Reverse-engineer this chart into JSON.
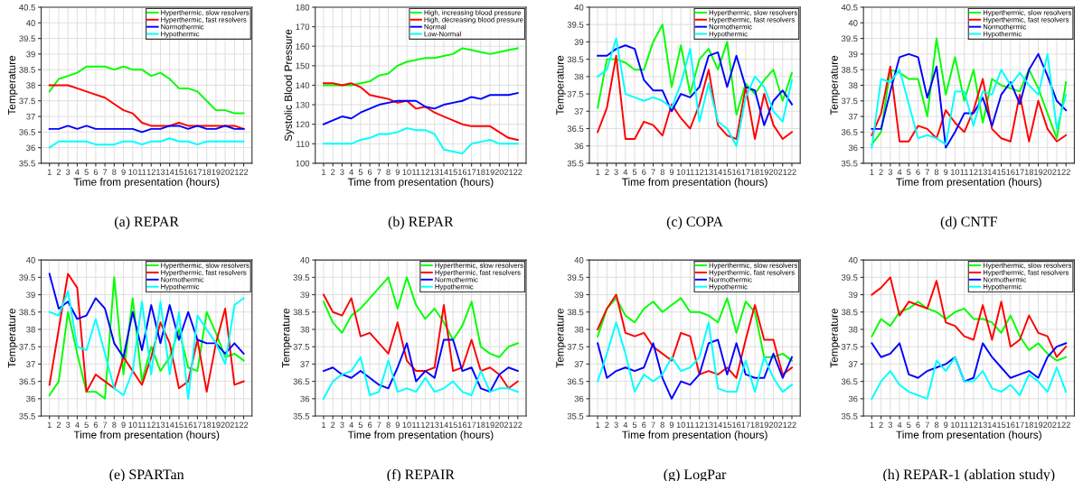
{
  "chart_data": [
    {
      "type": "line",
      "title": "(a) REPAR",
      "xlabel": "Time from presentation (hours)",
      "ylabel": "Temperature",
      "categories": [
        "1",
        "2",
        "3",
        "4",
        "5",
        "6",
        "7",
        "8",
        "9",
        "10",
        "11",
        "12",
        "13",
        "14",
        "15",
        "16",
        "17",
        "18",
        "19",
        "20",
        "21",
        "22"
      ],
      "ylim": [
        35.5,
        40.5
      ],
      "yticks": [
        35.5,
        36,
        36.5,
        37,
        37.5,
        38,
        38.5,
        39,
        39.5,
        40,
        40.5
      ],
      "grid": true,
      "legend": "top right",
      "series": [
        {
          "name": "Hyperthermic, slow resolvers",
          "color": "#00ff00",
          "values": [
            37.8,
            38.2,
            38.3,
            38.4,
            38.6,
            38.6,
            38.6,
            38.5,
            38.6,
            38.5,
            38.5,
            38.3,
            38.4,
            38.2,
            37.9,
            37.9,
            37.8,
            37.5,
            37.2,
            37.2,
            37.1,
            37.1
          ]
        },
        {
          "name": "Hyperthermic, fast resolvers",
          "color": "#ff0000",
          "values": [
            38,
            38,
            38,
            37.9,
            37.8,
            37.7,
            37.6,
            37.4,
            37.2,
            37.1,
            36.8,
            36.7,
            36.7,
            36.7,
            36.8,
            36.7,
            36.7,
            36.7,
            36.7,
            36.7,
            36.7,
            36.6
          ]
        },
        {
          "name": "Normothermic",
          "color": "#0000ff",
          "values": [
            36.6,
            36.6,
            36.7,
            36.6,
            36.7,
            36.6,
            36.6,
            36.6,
            36.6,
            36.6,
            36.5,
            36.6,
            36.6,
            36.7,
            36.7,
            36.6,
            36.7,
            36.6,
            36.6,
            36.7,
            36.6,
            36.6
          ]
        },
        {
          "name": "Hypothermic",
          "color": "#00ffff",
          "values": [
            36.0,
            36.2,
            36.2,
            36.2,
            36.2,
            36.1,
            36.1,
            36.1,
            36.2,
            36.2,
            36.1,
            36.2,
            36.2,
            36.3,
            36.2,
            36.2,
            36.1,
            36.2,
            36.2,
            36.2,
            36.2,
            36.2
          ]
        }
      ]
    },
    {
      "type": "line",
      "title": "(b) REPAR",
      "xlabel": "Time from presentation (hours)",
      "ylabel": "Systolic Blood Pressure",
      "categories": [
        "1",
        "2",
        "3",
        "4",
        "5",
        "6",
        "7",
        "8",
        "9",
        "10",
        "11",
        "12",
        "13",
        "14",
        "15",
        "16",
        "17",
        "18",
        "19",
        "20",
        "21",
        "22"
      ],
      "ylim": [
        100,
        180
      ],
      "yticks": [
        100,
        110,
        120,
        130,
        140,
        150,
        160,
        170,
        180
      ],
      "grid": true,
      "legend": "top right",
      "series": [
        {
          "name": "High, increasing blood pressure",
          "color": "#00ff00",
          "values": [
            140,
            140,
            140,
            140,
            141,
            142,
            145,
            146,
            150,
            152,
            153,
            154,
            154,
            155,
            156,
            159,
            158,
            157,
            156,
            157,
            158,
            159
          ]
        },
        {
          "name": "High, decreasing blood pressure",
          "color": "#ff0000",
          "values": [
            141,
            141,
            140,
            141,
            139,
            135,
            134,
            133,
            131,
            132,
            128,
            129,
            126,
            124,
            122,
            120,
            119,
            119,
            119,
            116,
            113,
            112
          ]
        },
        {
          "name": "Normal",
          "color": "#0000ff",
          "values": [
            120,
            122,
            124,
            123,
            126,
            128,
            130,
            131,
            132,
            132,
            132,
            129,
            128,
            130,
            131,
            132,
            134,
            133,
            135,
            135,
            135,
            136
          ]
        },
        {
          "name": "Low-Normal",
          "color": "#00ffff",
          "values": [
            110,
            110,
            110,
            110,
            112,
            113,
            115,
            115,
            116,
            118,
            117,
            117,
            115,
            107,
            106,
            105,
            110,
            111,
            112,
            110,
            110,
            110
          ]
        }
      ]
    },
    {
      "type": "line",
      "title": "(c) COPA",
      "xlabel": "Time from presentation (hours)",
      "ylabel": "Temperature",
      "categories": [
        "1",
        "2",
        "3",
        "4",
        "5",
        "6",
        "7",
        "8",
        "9",
        "10",
        "11",
        "12",
        "13",
        "14",
        "15",
        "16",
        "17",
        "18",
        "19",
        "20",
        "21",
        "22"
      ],
      "ylim": [
        35.5,
        40
      ],
      "yticks": [
        35.5,
        36,
        36.5,
        37,
        37.5,
        38,
        38.5,
        39,
        39.5,
        40
      ],
      "grid": true,
      "legend": "top right",
      "series": [
        {
          "name": "Hyperthermic, slow resolvers",
          "color": "#00ff00",
          "values": [
            37.1,
            38.5,
            38.5,
            38.4,
            38.2,
            38.2,
            39.0,
            39.5,
            37.7,
            38.9,
            37.5,
            38.5,
            38.8,
            38.2,
            39.0,
            36.9,
            37.8,
            37.5,
            37.9,
            38.2,
            37.3,
            38.1
          ]
        },
        {
          "name": "Hyperthermic, fast resolvers",
          "color": "#ff0000",
          "values": [
            36.4,
            37.1,
            38.6,
            36.2,
            36.2,
            36.7,
            36.6,
            36.3,
            37.2,
            36.8,
            36.5,
            37.2,
            38.2,
            36.6,
            36.3,
            36.2,
            37.7,
            36.2,
            37.5,
            36.6,
            36.2,
            36.4
          ]
        },
        {
          "name": "Normothermic",
          "color": "#0000ff",
          "values": [
            38.6,
            38.6,
            38.8,
            38.9,
            38.8,
            37.9,
            37.6,
            37.6,
            37.0,
            37.5,
            37.4,
            37.7,
            38.6,
            38.7,
            37.7,
            38.6,
            37.7,
            37.6,
            36.6,
            37.3,
            37.6,
            37.2
          ]
        },
        {
          "name": "Hypothermic",
          "color": "#00ffff",
          "values": [
            38.0,
            38.2,
            39.1,
            37.5,
            37.4,
            37.3,
            37.4,
            37.3,
            37.1,
            37.8,
            38.8,
            36.7,
            37.8,
            36.7,
            36.5,
            36.0,
            37.4,
            38.0,
            37.7,
            37.0,
            36.7,
            37.9
          ]
        }
      ]
    },
    {
      "type": "line",
      "title": "(d) CNTF",
      "xlabel": "Time from presentation (hours)",
      "ylabel": "Temperature",
      "categories": [
        "1",
        "2",
        "3",
        "4",
        "5",
        "6",
        "7",
        "8",
        "9",
        "10",
        "11",
        "12",
        "13",
        "14",
        "15",
        "16",
        "17",
        "18",
        "19",
        "20",
        "21",
        "22"
      ],
      "ylim": [
        35.5,
        40.5
      ],
      "yticks": [
        35.5,
        36,
        36.5,
        37,
        37.5,
        38,
        38.5,
        39,
        39.5,
        40,
        40.5
      ],
      "grid": true,
      "legend": "top right",
      "series": [
        {
          "name": "Hyperthermic, slow resolvers",
          "color": "#00ff00",
          "values": [
            36.1,
            36.5,
            38.5,
            38.4,
            38.2,
            38.2,
            37.0,
            39.5,
            37.7,
            38.9,
            37.5,
            38.5,
            36.8,
            38.2,
            38.0,
            37.9,
            37.8,
            38.5,
            37.9,
            37.1,
            36.3,
            38.1
          ]
        },
        {
          "name": "Hyperthermic, fast resolvers",
          "color": "#ff0000",
          "values": [
            36.4,
            37.1,
            38.6,
            36.2,
            36.2,
            36.7,
            36.6,
            36.3,
            37.2,
            36.8,
            36.5,
            37.2,
            38.2,
            36.6,
            36.3,
            36.2,
            37.7,
            36.2,
            37.5,
            36.6,
            36.2,
            36.4
          ]
        },
        {
          "name": "Normothermic",
          "color": "#0000ff",
          "values": [
            36.6,
            36.6,
            37.8,
            38.9,
            39.0,
            38.9,
            37.6,
            38.6,
            36.0,
            36.5,
            37.1,
            37.1,
            37.6,
            36.7,
            37.7,
            38.1,
            37.4,
            38.5,
            39.0,
            38.3,
            37.5,
            37.2
          ]
        },
        {
          "name": "Hypothermic",
          "color": "#00ffff",
          "values": [
            36.0,
            38.2,
            38.1,
            38.5,
            37.4,
            36.3,
            36.4,
            36.3,
            36.1,
            37.8,
            37.8,
            36.7,
            37.8,
            37.7,
            38.5,
            38.0,
            38.4,
            38.0,
            37.7,
            39.0,
            36.6,
            37.7
          ]
        }
      ]
    },
    {
      "type": "line",
      "title": "(e) SPARTan",
      "xlabel": "Time from presentation (hours)",
      "ylabel": "Temperature",
      "categories": [
        "1",
        "2",
        "3",
        "4",
        "5",
        "6",
        "7",
        "8",
        "9",
        "10",
        "11",
        "12",
        "13",
        "14",
        "15",
        "16",
        "17",
        "18",
        "19",
        "20",
        "21",
        "22"
      ],
      "ylim": [
        35.5,
        40
      ],
      "yticks": [
        35.5,
        36,
        36.5,
        37,
        37.5,
        38,
        38.5,
        39,
        39.5,
        40
      ],
      "grid": true,
      "legend": "top right",
      "series": [
        {
          "name": "Hyperthermic, slow resolvers",
          "color": "#00ff00",
          "values": [
            36.1,
            36.5,
            38.5,
            37.3,
            36.2,
            36.2,
            36.0,
            39.5,
            36.7,
            38.9,
            36.5,
            37.5,
            36.8,
            37.2,
            38.0,
            36.9,
            36.8,
            38.5,
            37.9,
            37.2,
            37.3,
            37.1
          ]
        },
        {
          "name": "Hyperthermic, fast resolvers",
          "color": "#ff0000",
          "values": [
            36.4,
            38.0,
            39.6,
            39.2,
            36.2,
            36.7,
            36.5,
            36.3,
            37.2,
            36.8,
            36.4,
            37.2,
            38.2,
            37.6,
            36.3,
            36.5,
            37.7,
            36.2,
            37.6,
            38.6,
            36.4,
            36.5
          ]
        },
        {
          "name": "Normothermic",
          "color": "#0000ff",
          "values": [
            39.6,
            38.6,
            38.8,
            38.3,
            38.4,
            38.9,
            38.6,
            37.6,
            37.2,
            38.5,
            37.4,
            38.7,
            37.6,
            38.7,
            37.7,
            38.5,
            37.7,
            37.6,
            37.6,
            37.3,
            37.6,
            37.3
          ]
        },
        {
          "name": "Hypothermic",
          "color": "#00ffff",
          "values": [
            38.5,
            38.4,
            39.1,
            37.5,
            37.4,
            38.3,
            37.3,
            36.3,
            36.1,
            36.8,
            38.8,
            36.7,
            38.8,
            36.7,
            38.5,
            36.0,
            38.4,
            38.0,
            37.6,
            37.0,
            38.7,
            38.9
          ]
        }
      ]
    },
    {
      "type": "line",
      "title": "(f) REPAIR",
      "xlabel": "Time from presentation (hours)",
      "ylabel": "Temperature",
      "categories": [
        "1",
        "2",
        "3",
        "4",
        "5",
        "6",
        "7",
        "8",
        "9",
        "10",
        "11",
        "12",
        "13",
        "14",
        "15",
        "16",
        "17",
        "18",
        "19",
        "20",
        "21",
        "22"
      ],
      "ylim": [
        35.5,
        40
      ],
      "yticks": [
        35.5,
        36,
        36.5,
        37,
        37.5,
        38,
        38.5,
        39,
        39.5,
        40
      ],
      "grid": true,
      "legend": "top right",
      "series": [
        {
          "name": "Hyperthermic, slow resolvers",
          "color": "#00ff00",
          "values": [
            38.8,
            38.2,
            37.9,
            38.4,
            38.6,
            38.9,
            39.2,
            39.5,
            38.6,
            39.5,
            38.7,
            38.3,
            38.6,
            38.2,
            37.7,
            38.1,
            38.8,
            37.5,
            37.3,
            37.2,
            37.5,
            37.6
          ]
        },
        {
          "name": "Hyperthermic, fast resolvers",
          "color": "#ff0000",
          "values": [
            39.0,
            38.5,
            38.4,
            38.9,
            37.8,
            37.9,
            37.6,
            37.3,
            38.2,
            37.1,
            36.8,
            36.8,
            36.9,
            38.7,
            36.8,
            36.9,
            37.7,
            36.8,
            36.9,
            36.7,
            36.3,
            36.5
          ]
        },
        {
          "name": "Normothermic",
          "color": "#0000ff",
          "values": [
            36.8,
            36.9,
            36.7,
            36.6,
            36.8,
            36.6,
            36.4,
            36.3,
            36.9,
            37.6,
            36.5,
            36.8,
            36.6,
            37.7,
            37.7,
            36.8,
            36.9,
            36.3,
            36.2,
            36.7,
            36.9,
            36.8
          ]
        },
        {
          "name": "Hypothermic",
          "color": "#00ffff",
          "values": [
            36.0,
            36.5,
            36.7,
            36.8,
            37.2,
            36.1,
            36.2,
            37.1,
            36.2,
            36.3,
            36.2,
            36.6,
            36.2,
            36.3,
            36.5,
            36.2,
            36.1,
            36.8,
            36.2,
            36.3,
            36.3,
            36.2
          ]
        }
      ]
    },
    {
      "type": "line",
      "title": "(g) LogPar",
      "xlabel": "Time from presentation (hours)",
      "ylabel": "Temperature",
      "categories": [
        "1",
        "2",
        "3",
        "4",
        "5",
        "6",
        "7",
        "8",
        "9",
        "10",
        "11",
        "12",
        "13",
        "14",
        "15",
        "16",
        "17",
        "18",
        "19",
        "20",
        "21",
        "22"
      ],
      "ylim": [
        35.5,
        40
      ],
      "yticks": [
        35.5,
        36,
        36.5,
        37,
        37.5,
        38,
        38.5,
        39,
        39.5,
        40
      ],
      "grid": true,
      "legend": "top right",
      "series": [
        {
          "name": "Hyperthermic, slow resolvers",
          "color": "#00ff00",
          "values": [
            37.8,
            38.6,
            38.9,
            38.4,
            38.2,
            38.6,
            38.8,
            38.5,
            38.7,
            38.9,
            38.5,
            38.5,
            38.4,
            38.2,
            38.9,
            37.9,
            38.8,
            38.5,
            37.2,
            37.2,
            37.3,
            37.1
          ]
        },
        {
          "name": "Hyperthermic, fast resolvers",
          "color": "#ff0000",
          "values": [
            38.0,
            38.6,
            39.0,
            37.9,
            37.8,
            37.9,
            37.5,
            37.3,
            37.1,
            37.9,
            37.8,
            36.7,
            36.8,
            36.7,
            36.9,
            36.6,
            37.7,
            38.7,
            37.7,
            37.7,
            36.7,
            36.9
          ]
        },
        {
          "name": "Normothermic",
          "color": "#0000ff",
          "values": [
            37.6,
            36.6,
            36.8,
            36.9,
            36.8,
            36.9,
            37.6,
            36.6,
            36.0,
            36.5,
            36.4,
            36.7,
            37.6,
            37.7,
            36.7,
            37.6,
            36.7,
            36.6,
            36.6,
            37.3,
            36.6,
            37.2
          ]
        },
        {
          "name": "Hypothermic",
          "color": "#00ffff",
          "values": [
            36.5,
            37.3,
            38.2,
            37.3,
            36.2,
            36.7,
            36.5,
            36.7,
            37.2,
            36.8,
            36.9,
            37.2,
            38.2,
            36.3,
            36.2,
            36.2,
            37.1,
            36.2,
            37.2,
            36.6,
            36.2,
            36.4
          ]
        }
      ]
    },
    {
      "type": "line",
      "title": "(h) REPAR-1 (ablation study)",
      "xlabel": "Time from presentation (hours)",
      "ylabel": "Temperature",
      "categories": [
        "1",
        "2",
        "3",
        "4",
        "5",
        "6",
        "7",
        "8",
        "9",
        "10",
        "11",
        "12",
        "13",
        "14",
        "15",
        "16",
        "17",
        "18",
        "19",
        "20",
        "21",
        "22"
      ],
      "ylim": [
        35.5,
        40
      ],
      "yticks": [
        35.5,
        36,
        36.5,
        37,
        37.5,
        38,
        38.5,
        39,
        39.5,
        40
      ],
      "grid": true,
      "legend": "top right",
      "series": [
        {
          "name": "Hyperthermic, slow resolvers",
          "color": "#00ff00",
          "values": [
            37.8,
            38.3,
            38.1,
            38.5,
            38.6,
            38.8,
            38.6,
            38.5,
            38.3,
            38.5,
            38.6,
            38.3,
            38.3,
            38.2,
            37.9,
            38.4,
            37.8,
            37.4,
            37.6,
            37.3,
            37.1,
            37.2
          ]
        },
        {
          "name": "Hyperthermic, fast resolvers",
          "color": "#ff0000",
          "values": [
            39.0,
            39.2,
            39.5,
            38.4,
            38.8,
            38.7,
            38.6,
            39.4,
            38.2,
            38.1,
            37.8,
            37.7,
            38.7,
            37.7,
            38.8,
            37.5,
            37.7,
            38.4,
            37.9,
            37.8,
            37.2,
            37.5
          ]
        },
        {
          "name": "Normothermic",
          "color": "#0000ff",
          "values": [
            37.6,
            37.2,
            37.3,
            37.6,
            36.7,
            36.6,
            36.8,
            36.9,
            37.0,
            37.2,
            36.5,
            36.6,
            37.6,
            37.2,
            36.9,
            36.6,
            36.7,
            36.8,
            36.6,
            37.2,
            37.5,
            37.6
          ]
        },
        {
          "name": "Hypothermic",
          "color": "#00ffff",
          "values": [
            36.0,
            36.5,
            36.8,
            36.4,
            36.2,
            36.1,
            36.0,
            37.1,
            36.8,
            37.2,
            36.5,
            36.5,
            36.8,
            36.3,
            36.2,
            36.4,
            36.1,
            36.7,
            36.5,
            36.2,
            36.9,
            36.2
          ]
        }
      ]
    }
  ]
}
